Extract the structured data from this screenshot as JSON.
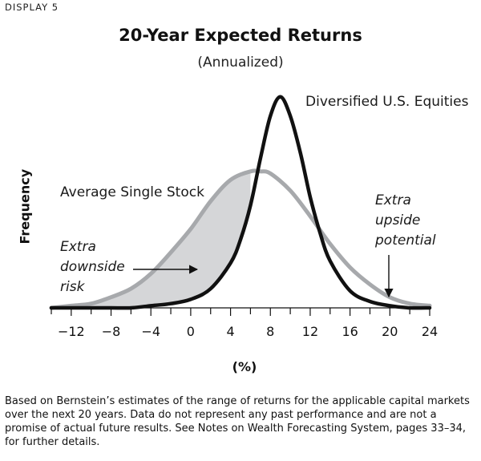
{
  "display_label": "DISPLAY 5",
  "footnote": "Based on Bernstein’s estimates of the range of returns for the applicable capital markets over the next 20 years. Data do not represent any past performance and are not a promise of actual future results. See Notes on Wealth Forecasting System, pages 33–34, for further details.",
  "annotations": {
    "downside": [
      "Extra",
      "downside",
      "risk"
    ],
    "upside": [
      "Extra",
      "upside",
      "potential"
    ]
  },
  "colors": {
    "equities": "#111111",
    "single_stock": "#a7a9ac",
    "shaded_region": "#d5d6d8",
    "axis": "#111111"
  },
  "chart_data": {
    "type": "line",
    "title": "20-Year Expected Returns",
    "subtitle": "(Annualized)",
    "xlabel": "(%)",
    "ylabel": "Frequency",
    "xlim": [
      -14,
      24
    ],
    "ylim": [
      0,
      1
    ],
    "x_ticks": [
      -12,
      -8,
      -4,
      0,
      4,
      8,
      12,
      16,
      20,
      24
    ],
    "grid": false,
    "legend": "none (series labelled directly on the curves)",
    "series": [
      {
        "name": "Diversified U.S. Equities",
        "x": [
          -14,
          -12,
          -10,
          -8,
          -6,
          -4,
          -2,
          0,
          2,
          4,
          5,
          6,
          7,
          8,
          9,
          10,
          11,
          12,
          13,
          14,
          16,
          18,
          20,
          22,
          24
        ],
        "y": [
          0.0,
          0.0,
          0.0,
          0.0,
          0.0,
          0.01,
          0.02,
          0.04,
          0.09,
          0.21,
          0.32,
          0.48,
          0.7,
          0.9,
          0.99,
          0.9,
          0.73,
          0.52,
          0.35,
          0.22,
          0.08,
          0.03,
          0.01,
          0.0,
          0.0
        ]
      },
      {
        "name": "Average Single Stock",
        "x": [
          -14,
          -12,
          -10,
          -8,
          -6,
          -4,
          -2,
          0,
          2,
          4,
          6,
          7,
          8,
          10,
          12,
          14,
          16,
          18,
          20,
          22,
          24
        ],
        "y": [
          0.0,
          0.01,
          0.02,
          0.05,
          0.09,
          0.16,
          0.26,
          0.37,
          0.5,
          0.6,
          0.64,
          0.64,
          0.63,
          0.55,
          0.43,
          0.3,
          0.19,
          0.11,
          0.05,
          0.02,
          0.01
        ]
      }
    ],
    "shaded_region": "area between the two curves to the left of their crossing, x from -14 to 6"
  }
}
